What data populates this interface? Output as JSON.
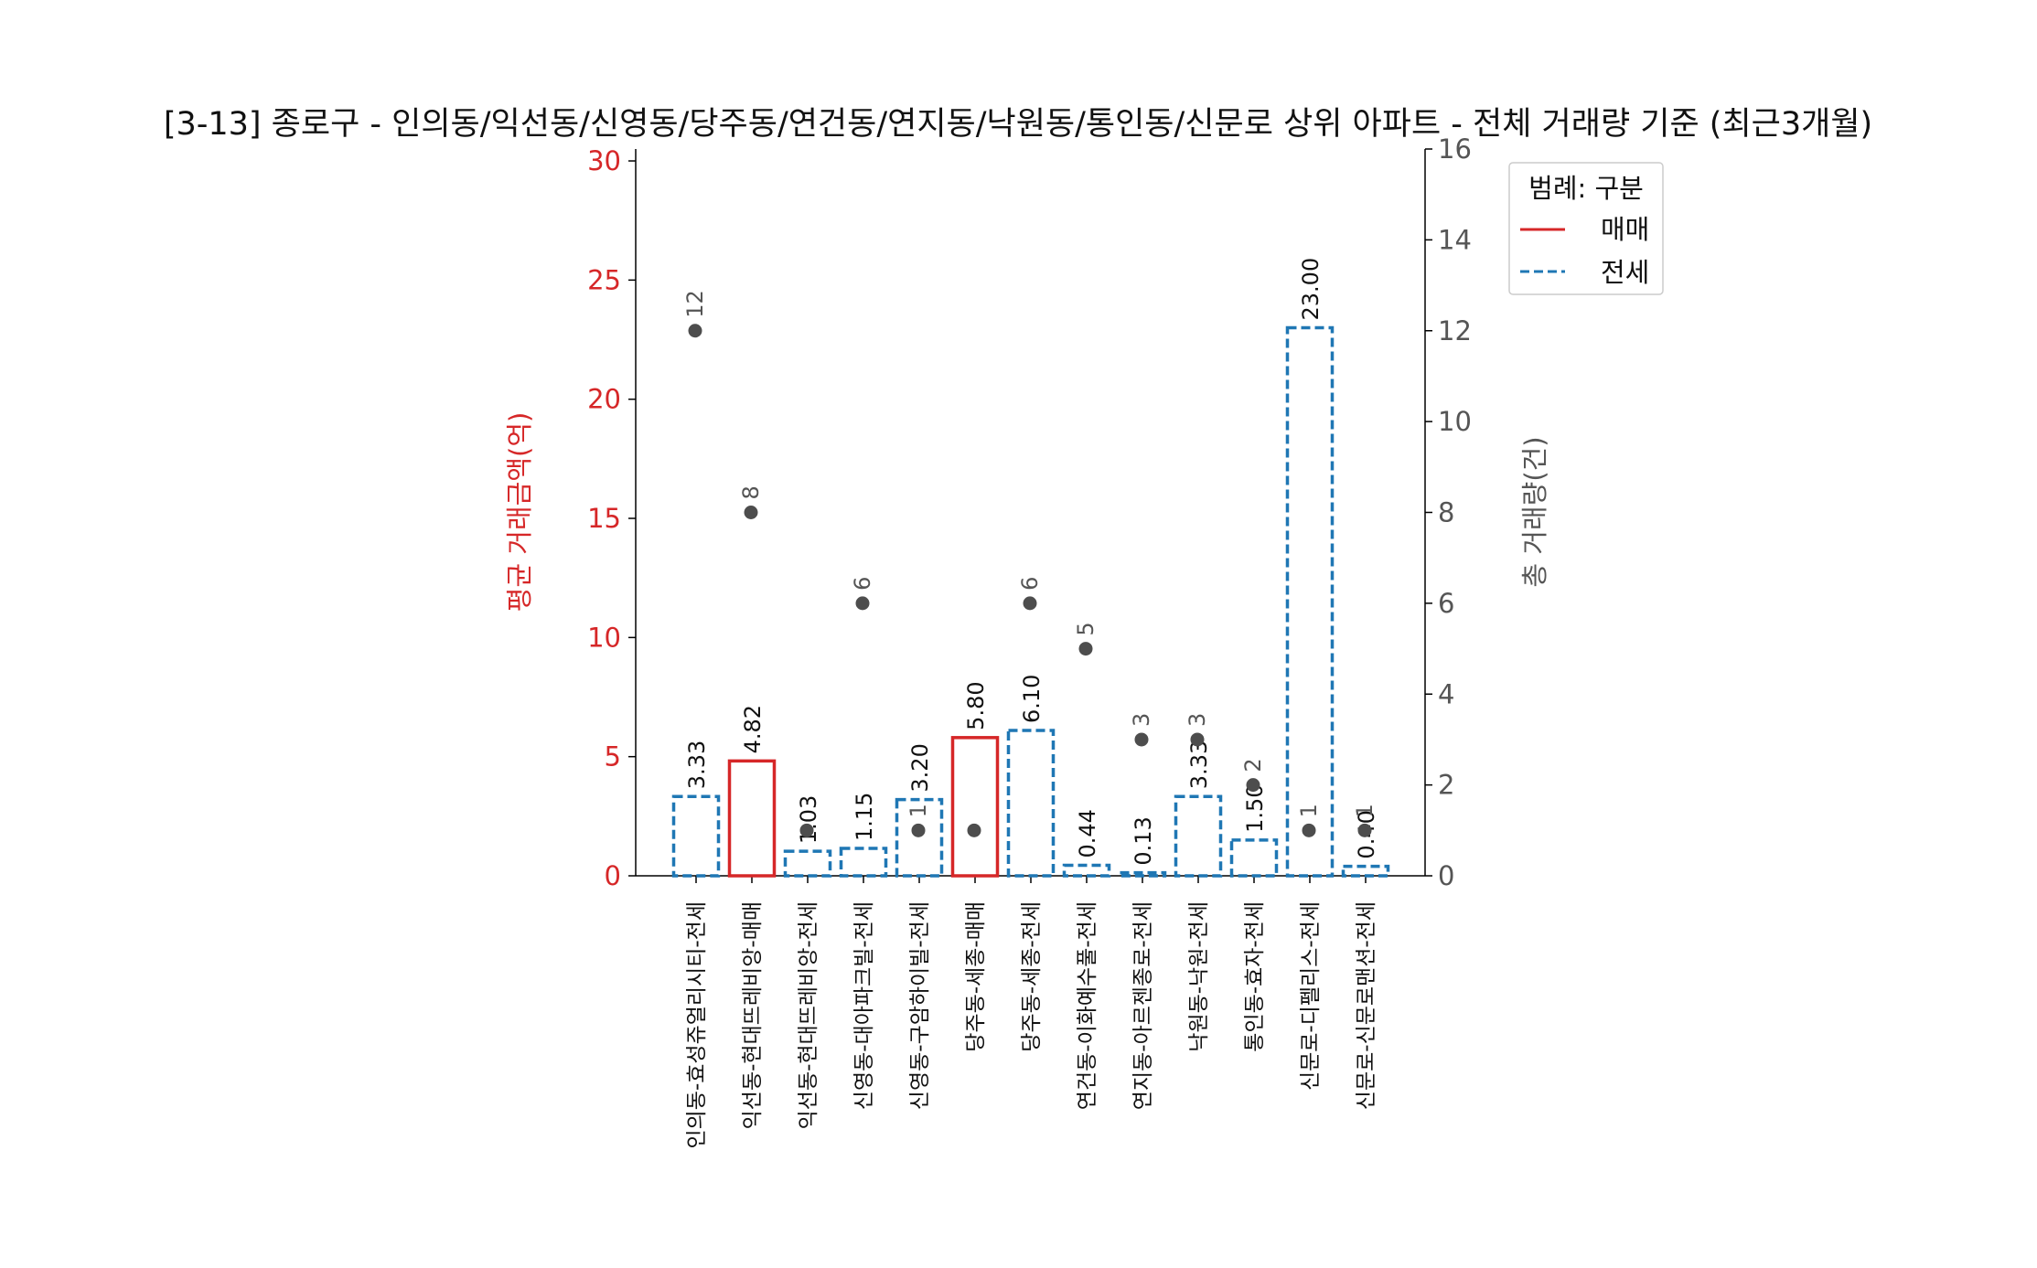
{
  "chart_data": {
    "type": "bar",
    "title": "[3-13] 종로구 - 인의동/익선동/신영동/당주동/연건동/연지동/낙원동/통인동/신문로 상위 아파트 - 전체 거래량 기준 (최근3개월)",
    "ylabel": "평균 거래금액(억)",
    "y2label": "총 거래량(건)",
    "xlabel": "",
    "ylim": [
      0,
      30.5
    ],
    "y2lim": [
      0,
      16
    ],
    "yticks": [
      "0",
      "5",
      "10",
      "15",
      "20",
      "25",
      "30"
    ],
    "y2ticks": [
      "0",
      "2",
      "4",
      "6",
      "8",
      "10",
      "12",
      "14",
      "16"
    ],
    "categories": [
      "인의동-효성쥬얼리시티-전세",
      "익선동-현대뜨레비앙-매매",
      "익선동-현대뜨레비앙-전세",
      "신영동-대아파크빌-전세",
      "신영동-구암하이빌-전세",
      "당주동-세종-매매",
      "당주동-세종-전세",
      "연건동-이화예수풀-전세",
      "연지동-아르젠종로-전세",
      "낙원동-낙원-전세",
      "통인동-효자-전세",
      "신문로-디펠리스-전세",
      "신문로-신문로맨션-전세"
    ],
    "bar_types": [
      "전세",
      "매매",
      "전세",
      "전세",
      "전세",
      "매매",
      "전세",
      "전세",
      "전세",
      "전세",
      "전세",
      "전세",
      "전세"
    ],
    "avg_price": [
      3.33,
      4.82,
      1.03,
      1.15,
      3.2,
      5.8,
      6.1,
      0.44,
      0.13,
      3.33,
      1.5,
      23.0,
      0.4
    ],
    "avg_price_labels": [
      "3.33",
      "4.82",
      "1.03",
      "1.15",
      "3.20",
      "5.80",
      "6.10",
      "0.44",
      "0.13",
      "3.33",
      "1.50",
      "23.00",
      "0.40"
    ],
    "volume": [
      12,
      8,
      1,
      6,
      1,
      1,
      6,
      5,
      3,
      3,
      2,
      1,
      1
    ],
    "volume_labels": [
      "12",
      "8",
      "",
      "6",
      "1",
      "",
      "6",
      "5",
      "3",
      "3",
      "2",
      "1",
      "1"
    ],
    "legend": {
      "title": "범례: 구분",
      "entries": [
        {
          "label": "매매",
          "style": "solid",
          "color": "#d62728"
        },
        {
          "label": "전세",
          "style": "dashed",
          "color": "#1f77b4"
        }
      ],
      "position": "upper-right-outside"
    },
    "colors": {
      "sale": "#d62728",
      "jeonse": "#1f77b4",
      "dot": "#4d4d4d",
      "left_axis": "#d62728",
      "right_axis": "#555555"
    }
  }
}
